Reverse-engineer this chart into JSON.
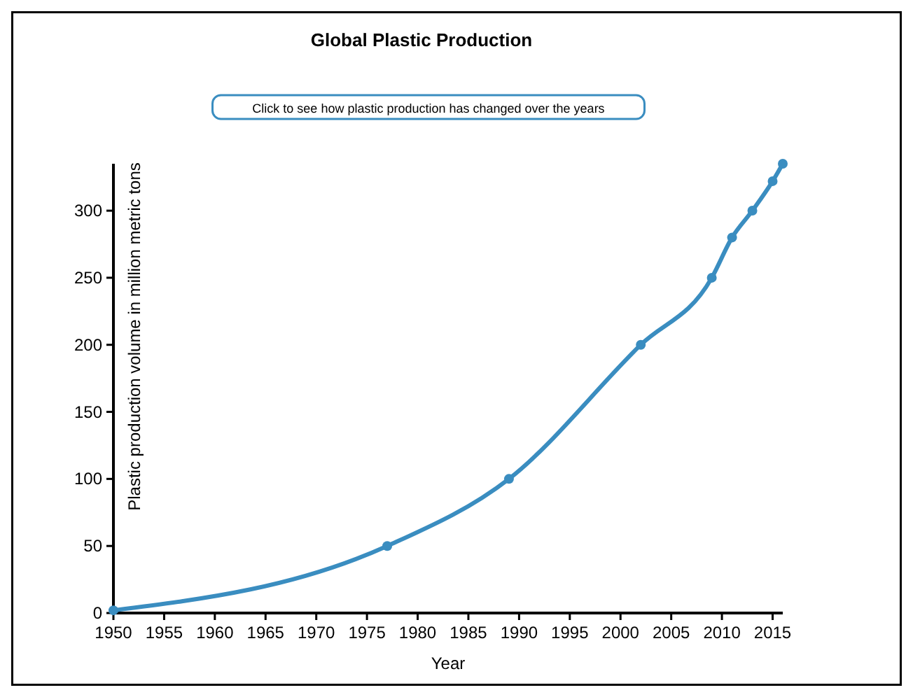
{
  "chart_data": {
    "type": "line",
    "title": "Global Plastic Production",
    "xlabel": "Year",
    "ylabel": "Plastic production volume in million metric tons",
    "annotations": [
      "Click to see how plastic production has changed over the years"
    ],
    "x": [
      1950,
      1977,
      1989,
      2002,
      2009,
      2011,
      2013,
      2015,
      2016
    ],
    "series": [
      {
        "color": "#3a8dc0",
        "values": [
          2,
          50,
          100,
          200,
          250,
          280,
          300,
          322,
          335
        ]
      }
    ],
    "xlim": [
      1950,
      2016
    ],
    "xticks": [
      1950,
      1955,
      1960,
      1965,
      1970,
      1975,
      1980,
      1985,
      1990,
      1995,
      2000,
      2005,
      2010,
      2015
    ],
    "ylim": [
      0,
      335
    ],
    "yticks": [
      0,
      50,
      100,
      150,
      200,
      250,
      300
    ],
    "grid": false,
    "marker": "circle",
    "line_style": "solid"
  }
}
